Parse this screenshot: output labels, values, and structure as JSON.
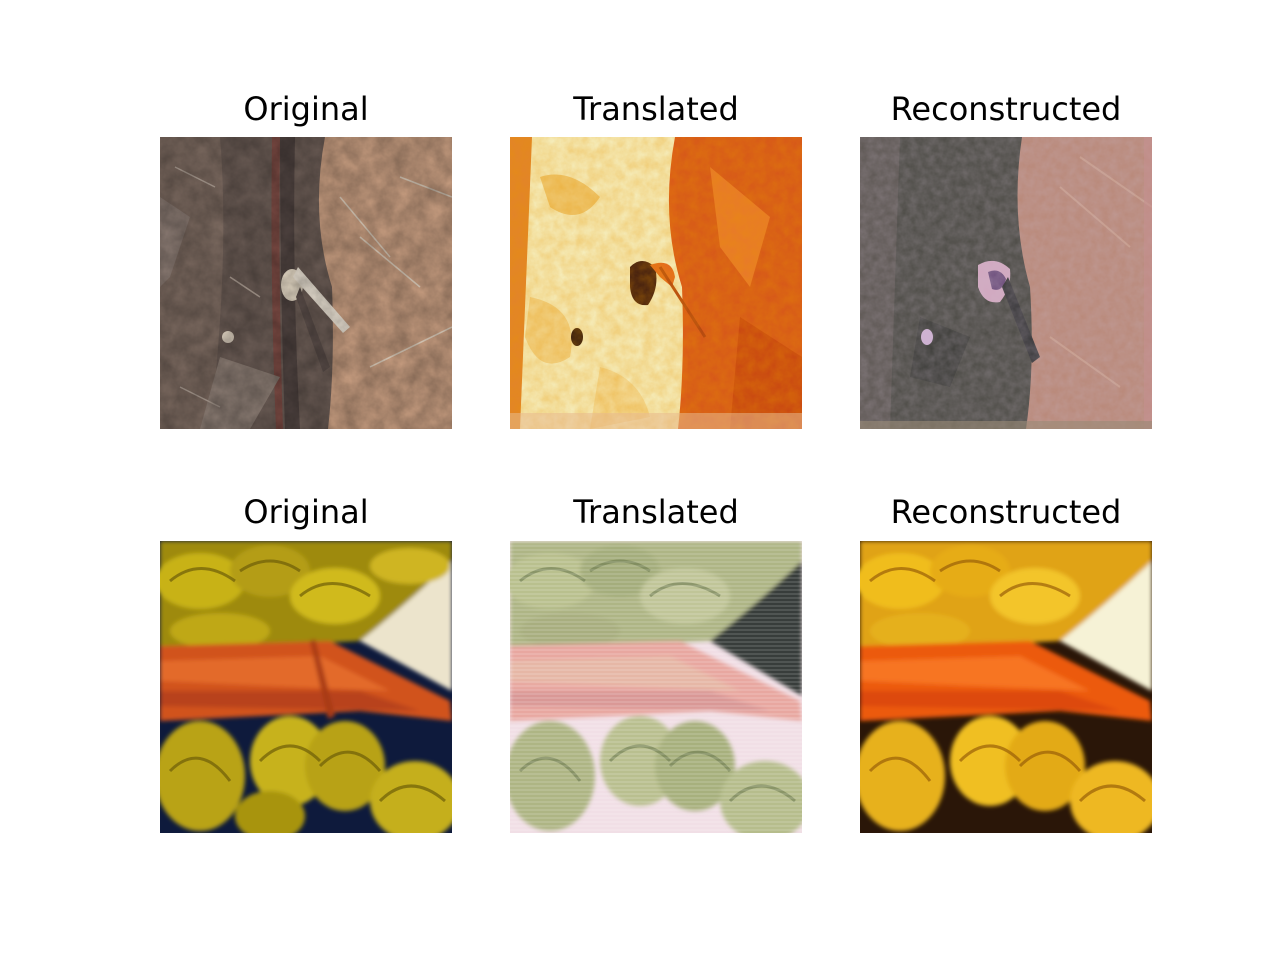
{
  "figure": {
    "rows": [
      {
        "panels": [
          {
            "title": "Original",
            "texture": "marble-stone"
          },
          {
            "title": "Translated",
            "texture": "orange-cream-painting"
          },
          {
            "title": "Reconstructed",
            "texture": "marble-stone-reconstructed"
          }
        ]
      },
      {
        "panels": [
          {
            "title": "Original",
            "texture": "yellow-leaves-orange-band"
          },
          {
            "title": "Translated",
            "texture": "green-leaves-pink-band"
          },
          {
            "title": "Reconstructed",
            "texture": "yellow-leaves-orange-band-reconstructed"
          }
        ]
      }
    ]
  }
}
